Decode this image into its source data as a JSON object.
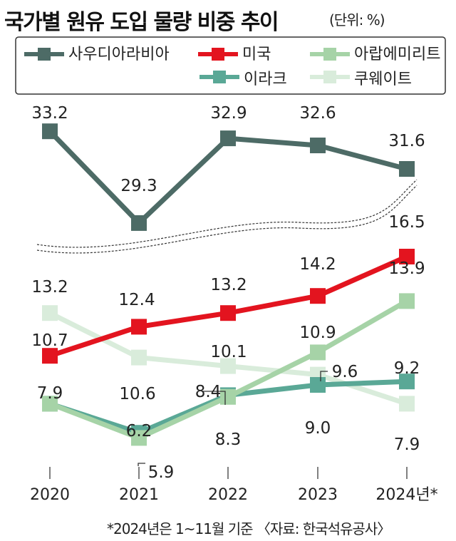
{
  "title": "국가별 원유 도입 물량 비중 추이",
  "unit": "(단위: %)",
  "footnote": "*2024년은 1~11월 기준 〈자료: 한국석유공사〉",
  "chart_data": {
    "type": "line",
    "title": "국가별 원유 도입 물량 비중 추이",
    "unit": "%",
    "categories": [
      "2020",
      "2021",
      "2022",
      "2023",
      "2024년*"
    ],
    "legend_position": "top",
    "axis_break": true,
    "grid": "vertical",
    "series": [
      {
        "name": "사우디아라비아",
        "color": "#4d6b66",
        "values": [
          33.2,
          29.3,
          32.9,
          32.6,
          31.6
        ]
      },
      {
        "name": "미국",
        "color": "#e3141f",
        "values": [
          10.7,
          12.4,
          13.2,
          14.2,
          16.5
        ]
      },
      {
        "name": "아랍에미리트",
        "color": "#a6d3a7",
        "values": [
          7.9,
          5.9,
          8.3,
          10.9,
          13.9
        ]
      },
      {
        "name": "이라크",
        "color": "#5aa896",
        "values": [
          7.9,
          6.2,
          8.4,
          9.0,
          9.2
        ]
      },
      {
        "name": "쿠웨이트",
        "color": "#d9ecdb",
        "values": [
          13.2,
          10.6,
          10.1,
          9.6,
          7.9
        ]
      }
    ],
    "data_labels": [
      [
        "33.2",
        "29.3",
        "32.9",
        "32.6",
        "31.6"
      ],
      [
        "10.7",
        "12.4",
        "13.2",
        "14.2",
        "16.5"
      ],
      [
        "",
        "5.9",
        "8.3",
        "10.9",
        "13.9"
      ],
      [
        "7.9",
        "6.2",
        "8.4",
        "9.0",
        "9.2"
      ],
      [
        "13.2",
        "10.6",
        "10.1",
        "9.6",
        "7.9"
      ]
    ]
  }
}
